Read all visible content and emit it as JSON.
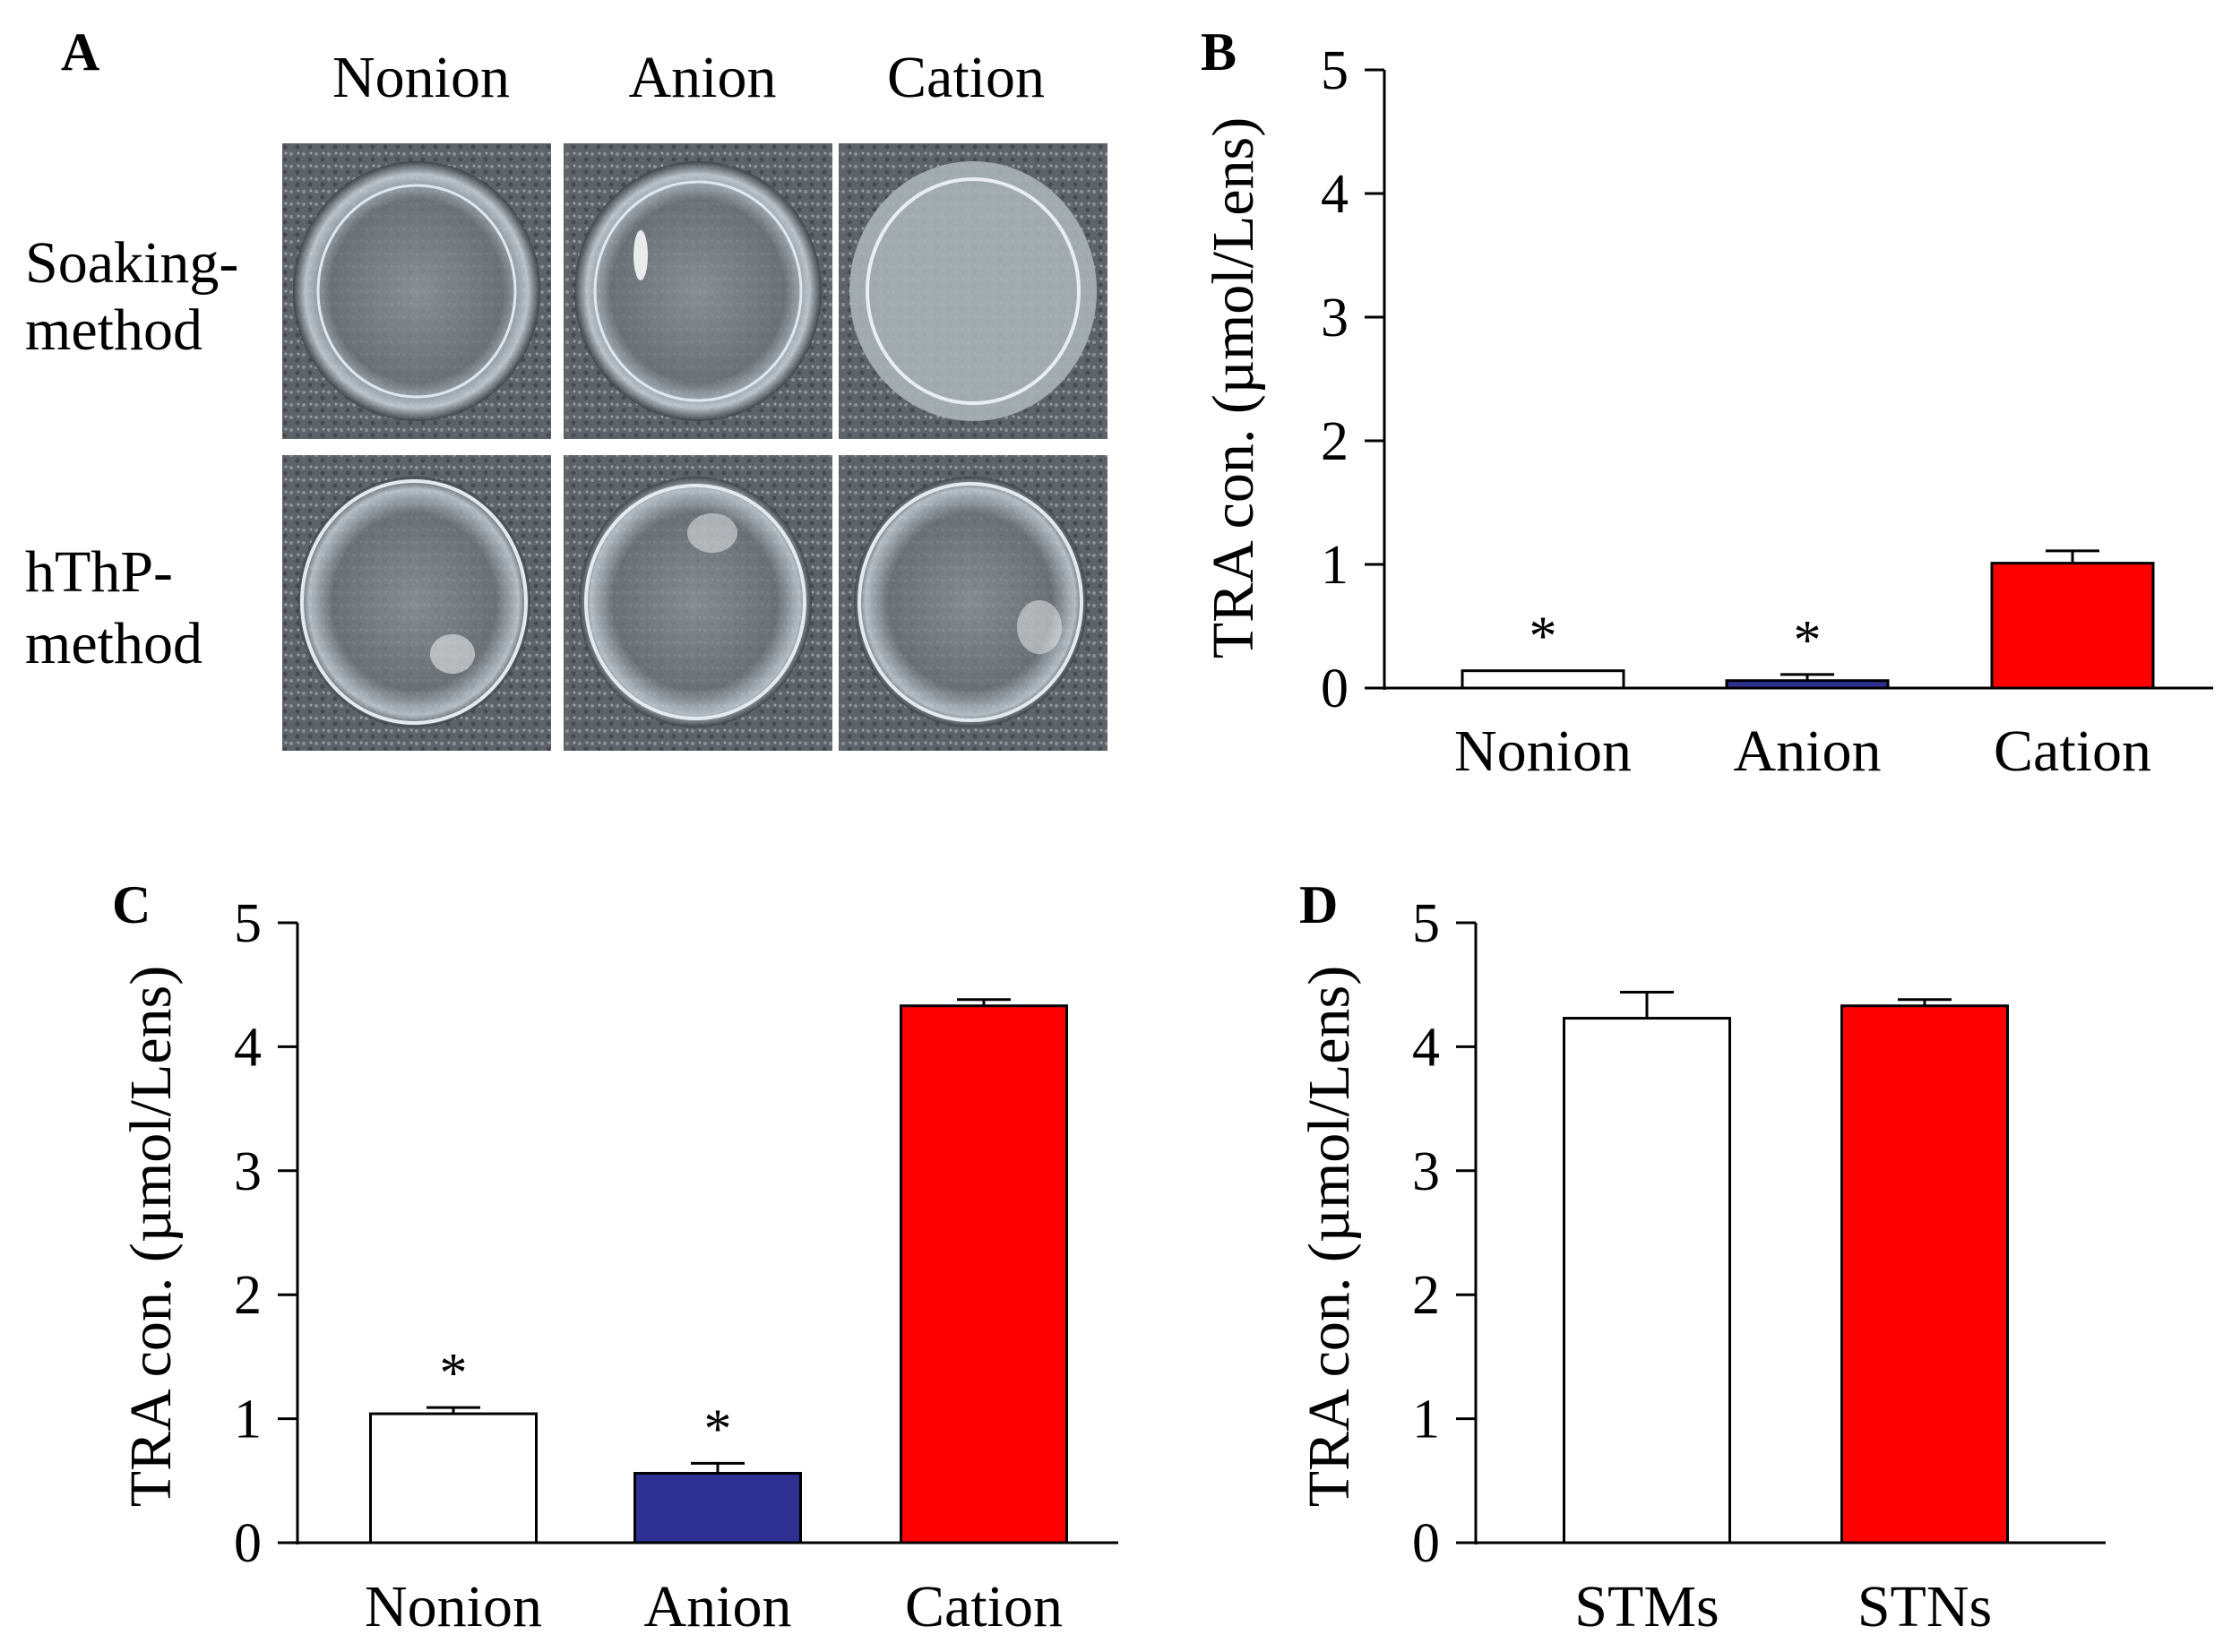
{
  "panel_a": {
    "label": "A",
    "columns": [
      "Nonion",
      "Anion",
      "Cation"
    ],
    "rows": [
      {
        "lines": [
          "Soaking-",
          "method"
        ]
      },
      {
        "lines": [
          "hThP-",
          "method"
        ]
      }
    ]
  },
  "chart_data": [
    {
      "panel": "B",
      "type": "bar",
      "categories": [
        "Nonion",
        "Anion",
        "Cation"
      ],
      "values": [
        0.14,
        0.06,
        1.01
      ],
      "errors": [
        0.0,
        0.05,
        0.1
      ],
      "significance": [
        "*",
        "*",
        ""
      ],
      "colors": [
        "#ffffff",
        "#2e3192",
        "#ff0000"
      ],
      "ylabel": "TRA con. (µmol/Lens)",
      "ylim": [
        0,
        5
      ],
      "yticks": [
        "0",
        "1",
        "2",
        "3",
        "4",
        "5"
      ]
    },
    {
      "panel": "C",
      "type": "bar",
      "categories": [
        "Nonion",
        "Anion",
        "Cation"
      ],
      "values": [
        1.04,
        0.56,
        4.33
      ],
      "errors": [
        0.05,
        0.08,
        0.05
      ],
      "significance": [
        "*",
        "*",
        ""
      ],
      "colors": [
        "#ffffff",
        "#2e3192",
        "#ff0000"
      ],
      "ylabel": "TRA con. (µmol/Lens)",
      "ylim": [
        0,
        5
      ],
      "yticks": [
        "0",
        "1",
        "2",
        "3",
        "4",
        "5"
      ]
    },
    {
      "panel": "D",
      "type": "bar",
      "categories": [
        "STMs",
        "STNs"
      ],
      "values": [
        4.23,
        4.33
      ],
      "errors": [
        0.21,
        0.05
      ],
      "significance": [
        "",
        ""
      ],
      "colors": [
        "#ffffff",
        "#ff0000"
      ],
      "ylabel": "TRA con. (µmol/Lens)",
      "ylim": [
        0,
        5
      ],
      "yticks": [
        "0",
        "1",
        "2",
        "3",
        "4",
        "5"
      ]
    }
  ]
}
